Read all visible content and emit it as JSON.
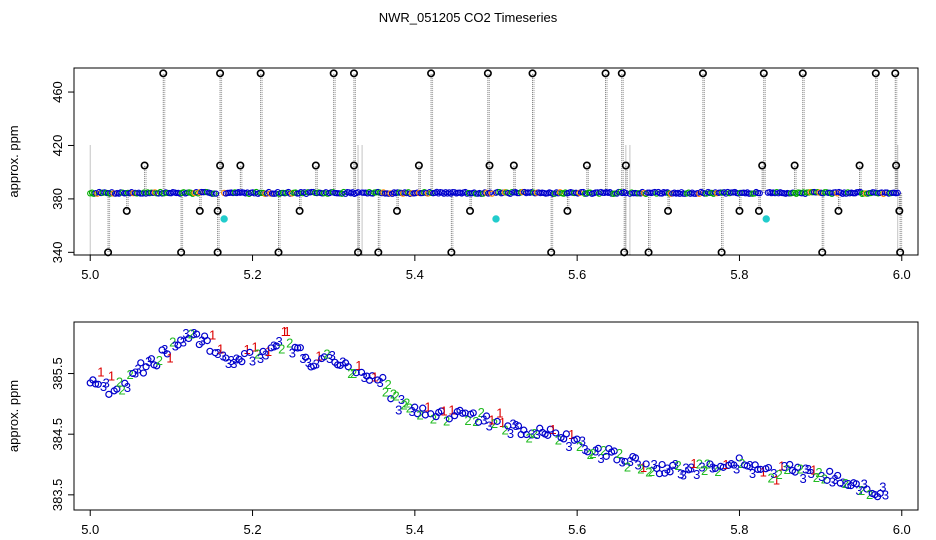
{
  "chart_data": {
    "title": "NWR_051205  CO2 Timeseries",
    "panels": [
      {
        "type": "scatter",
        "ylabel": "approx. ppm",
        "xlim": [
          4.98,
          6.02
        ],
        "ylim": [
          338,
          478
        ],
        "xticks": [
          "5.0",
          "5.2",
          "5.4",
          "5.6",
          "5.8",
          "6.0"
        ],
        "xtick_values": [
          5.0,
          5.2,
          5.4,
          5.6,
          5.8,
          6.0
        ],
        "yticks": [
          "340",
          "380",
          "420",
          "460"
        ],
        "ytick_values": [
          340,
          380,
          420,
          460
        ],
        "baseline_ppm": 384.5,
        "series_colors": {
          "main": "#0000cc",
          "alt": "#00aa00",
          "flag": "#ff8800",
          "outlier": "#000000",
          "cyan": "#22cccc"
        },
        "segments": [
          [
            5.0,
            5.155
          ],
          [
            5.165,
            5.33
          ],
          [
            5.335,
            5.495
          ],
          [
            5.5,
            5.66
          ],
          [
            5.665,
            5.825
          ],
          [
            5.835,
            5.995
          ]
        ],
        "outliers_high": [
          5.09,
          5.16,
          5.21,
          5.3,
          5.325,
          5.42,
          5.49,
          5.545,
          5.635,
          5.655,
          5.755,
          5.83,
          5.878,
          5.968,
          5.992
        ],
        "outliers_mid": [
          5.067,
          5.16,
          5.185,
          5.278,
          5.325,
          5.405,
          5.492,
          5.522,
          5.612,
          5.66,
          5.828,
          5.868,
          5.948,
          5.993
        ],
        "outliers_low_mid": [
          5.045,
          5.135,
          5.157,
          5.258,
          5.378,
          5.468,
          5.588,
          5.712,
          5.8,
          5.824,
          5.922,
          5.997
        ],
        "outliers_bottom": [
          5.022,
          5.112,
          5.157,
          5.232,
          5.33,
          5.355,
          5.445,
          5.568,
          5.658,
          5.688,
          5.778,
          5.902,
          5.998
        ],
        "cyan_points": [
          [
            5.165,
            365
          ],
          [
            5.5,
            365
          ],
          [
            5.833,
            365
          ]
        ]
      },
      {
        "type": "scatter",
        "ylabel": "approx. ppm",
        "xlim": [
          4.98,
          6.02
        ],
        "ylim": [
          383.25,
          386.35
        ],
        "xticks": [
          "5.0",
          "5.2",
          "5.4",
          "5.6",
          "5.8",
          "6.0"
        ],
        "xtick_values": [
          5.0,
          5.2,
          5.4,
          5.6,
          5.8,
          6.0
        ],
        "yticks": [
          "383.5",
          "384.5",
          "385.5"
        ],
        "ytick_values": [
          383.5,
          384.5,
          385.5
        ],
        "symbols": [
          "1",
          "2",
          "3"
        ],
        "symbol_colors": {
          "1": "#dd0000",
          "2": "#22bb22",
          "3": "#0000cc",
          "o": "#0000cc"
        },
        "trend": [
          [
            5.0,
            385.4
          ],
          [
            5.03,
            385.2
          ],
          [
            5.06,
            385.55
          ],
          [
            5.09,
            385.8
          ],
          [
            5.12,
            386.15
          ],
          [
            5.15,
            385.95
          ],
          [
            5.18,
            385.7
          ],
          [
            5.21,
            385.8
          ],
          [
            5.24,
            386.05
          ],
          [
            5.27,
            385.7
          ],
          [
            5.3,
            385.75
          ],
          [
            5.33,
            385.45
          ],
          [
            5.36,
            385.35
          ],
          [
            5.38,
            385.0
          ],
          [
            5.42,
            384.85
          ],
          [
            5.46,
            384.8
          ],
          [
            5.49,
            384.75
          ],
          [
            5.52,
            384.6
          ],
          [
            5.56,
            384.5
          ],
          [
            5.6,
            384.35
          ],
          [
            5.64,
            384.15
          ],
          [
            5.68,
            384.0
          ],
          [
            5.72,
            383.9
          ],
          [
            5.76,
            383.95
          ],
          [
            5.8,
            384.0
          ],
          [
            5.83,
            383.85
          ],
          [
            5.86,
            383.9
          ],
          [
            5.89,
            383.85
          ],
          [
            5.92,
            383.75
          ],
          [
            5.95,
            383.6
          ],
          [
            5.98,
            383.55
          ]
        ]
      }
    ]
  }
}
